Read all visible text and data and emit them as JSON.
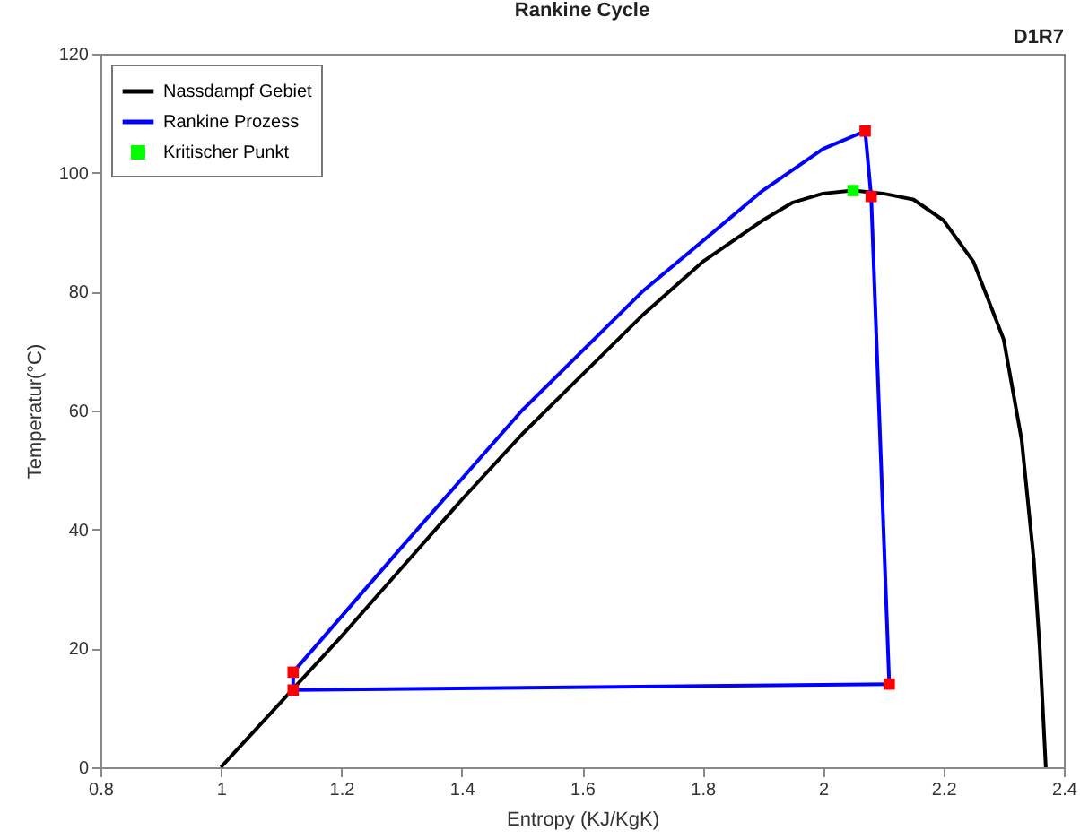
{
  "chart_data": {
    "type": "line",
    "title": "Rankine Cycle",
    "xlabel": "Entropy (KJ/KgK)",
    "ylabel": "Temperatur(°C)",
    "annotations": [
      "D1R7"
    ],
    "xlim": [
      0.8,
      2.4
    ],
    "xticks": [
      0.8,
      1,
      1.2,
      1.4,
      1.6,
      1.8,
      2,
      2.2,
      2.4
    ],
    "ylim": [
      0,
      120
    ],
    "yticks": [
      0,
      20,
      40,
      60,
      80,
      100,
      120
    ],
    "grid": false,
    "legend": "top left",
    "series": [
      {
        "name": "Nassdampf Gebiet",
        "color": "#000000",
        "x": [
          1,
          1.1,
          1.2,
          1.3,
          1.4,
          1.5,
          1.6,
          1.7,
          1.8,
          1.9,
          1.95,
          2.0,
          2.05,
          2.1,
          2.15,
          2.2,
          2.25,
          2.3,
          2.33,
          2.35,
          2.36,
          2.37
        ],
        "values": [
          0,
          11,
          22,
          33.5,
          45,
          56,
          66,
          76,
          85,
          92,
          95,
          96.5,
          97,
          96.5,
          95.5,
          92,
          85,
          72,
          55,
          35,
          20,
          0
        ]
      },
      {
        "name": "Rankine Prozess",
        "color": "#0000ff",
        "x": [
          1.12,
          1.12,
          1.3,
          1.5,
          1.7,
          1.9,
          2.0,
          2.07
        ],
        "values": [
          13,
          16,
          37,
          60,
          80,
          97,
          104,
          107
        ]
      },
      {
        "color": "#0000ff",
        "x": [
          2.07,
          2.08,
          2.11
        ],
        "values": [
          107,
          96,
          14
        ]
      },
      {
        "color": "#0000ff",
        "x": [
          1.12,
          2.11
        ],
        "values": [
          13,
          14
        ]
      },
      {
        "type": "scatter",
        "color": "#ff0000",
        "marker": "square",
        "x": [
          1.12,
          1.12,
          2.07,
          2.08,
          2.11
        ],
        "values": [
          13,
          16,
          107,
          96,
          14
        ]
      },
      {
        "name": "Kritischer Punkt",
        "type": "scatter",
        "color": "#00ff00",
        "marker": "square",
        "x": [
          2.05
        ],
        "values": [
          97
        ]
      }
    ]
  }
}
